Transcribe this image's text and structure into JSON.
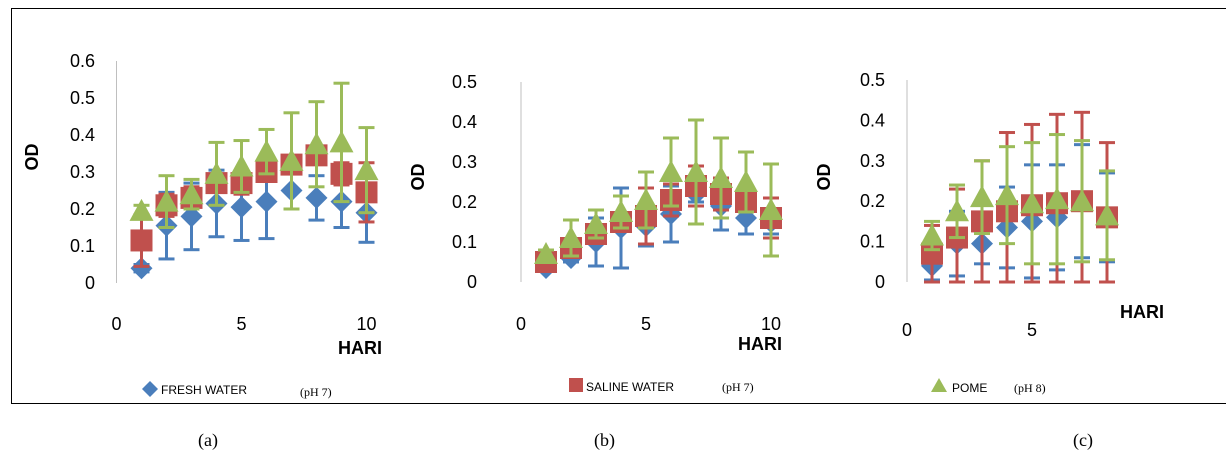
{
  "chart_data": [
    {
      "type": "scatter",
      "panel": "(a)",
      "xlabel": "HARI",
      "ylabel": "OD",
      "xlim": [
        0,
        10
      ],
      "ylim": [
        0,
        0.6
      ],
      "xticks": [
        "0",
        "5",
        "10"
      ],
      "yticks": [
        "0",
        "0.1",
        "0.2",
        "0.3",
        "0.4",
        "0.5",
        "0.6"
      ],
      "x": [
        1,
        2,
        3,
        4,
        5,
        6,
        7,
        8,
        9,
        10
      ],
      "series": [
        {
          "name": "FRESH WATER",
          "marker": "diamond",
          "color": "#4a7ebb",
          "values": [
            0.04,
            0.155,
            0.18,
            0.215,
            0.205,
            0.22,
            0.25,
            0.23,
            0.22,
            0.19
          ],
          "err": [
            0.01,
            0.09,
            0.09,
            0.09,
            0.09,
            0.1,
            0.05,
            0.06,
            0.07,
            0.08
          ]
        },
        {
          "name": "SALINE WATER",
          "marker": "square",
          "color": "#c0504d",
          "values": [
            0.115,
            0.21,
            0.23,
            0.27,
            0.27,
            0.3,
            0.32,
            0.345,
            0.295,
            0.245
          ],
          "err": [
            0.07,
            0.03,
            0.03,
            0.02,
            0.03,
            0.02,
            0.02,
            0.02,
            0.03,
            0.08
          ]
        },
        {
          "name": "POME",
          "marker": "triangle",
          "color": "#9bbb59",
          "values": [
            0.195,
            0.22,
            0.24,
            0.295,
            0.315,
            0.355,
            0.33,
            0.375,
            0.38,
            0.305
          ],
          "err": [
            0.015,
            0.07,
            0.04,
            0.085,
            0.07,
            0.06,
            0.13,
            0.115,
            0.16,
            0.115
          ]
        }
      ]
    },
    {
      "type": "scatter",
      "panel": "(b)",
      "xlabel": "HARI",
      "ylabel": "OD",
      "xlim": [
        0,
        10
      ],
      "ylim": [
        0,
        0.5
      ],
      "xticks": [
        "0",
        "5",
        "10"
      ],
      "yticks": [
        "0",
        "0.1",
        "0.2",
        "0.3",
        "0.4",
        "0.5"
      ],
      "x": [
        1,
        2,
        3,
        4,
        5,
        6,
        7,
        8,
        9,
        10
      ],
      "series": [
        {
          "name": "FRESH WATER",
          "marker": "diamond",
          "color": "#4a7ebb",
          "values": [
            0.035,
            0.06,
            0.1,
            0.135,
            0.14,
            0.17,
            0.22,
            0.19,
            0.16,
            0.15
          ],
          "err": [
            0.005,
            0.01,
            0.06,
            0.1,
            0.05,
            0.07,
            0.02,
            0.06,
            0.04,
            0.03
          ]
        },
        {
          "name": "SALINE WATER",
          "marker": "square",
          "color": "#c0504d",
          "values": [
            0.05,
            0.085,
            0.12,
            0.15,
            0.165,
            0.205,
            0.24,
            0.22,
            0.2,
            0.16
          ],
          "err": [
            0.01,
            0.02,
            0.02,
            0.02,
            0.07,
            0.04,
            0.05,
            0.04,
            0.02,
            0.05
          ]
        },
        {
          "name": "POME",
          "marker": "triangle",
          "color": "#9bbb59",
          "values": [
            0.07,
            0.11,
            0.145,
            0.175,
            0.205,
            0.275,
            0.275,
            0.26,
            0.25,
            0.18
          ],
          "err": [
            0.01,
            0.045,
            0.035,
            0.04,
            0.07,
            0.085,
            0.13,
            0.1,
            0.075,
            0.115
          ]
        }
      ]
    },
    {
      "type": "scatter",
      "panel": "(c)",
      "xlabel": "HARI",
      "ylabel": "OD",
      "xlim": [
        0,
        10
      ],
      "ylim": [
        0,
        0.5
      ],
      "xticks": [
        "0",
        "5"
      ],
      "yticks": [
        "0",
        "0.1",
        "0.2",
        "0.3",
        "0.4",
        "0.5"
      ],
      "x": [
        1,
        2,
        3,
        4,
        5,
        6,
        7,
        8
      ],
      "series": [
        {
          "name": "FRESH WATER",
          "marker": "diamond",
          "color": "#4a7ebb",
          "values": [
            0.04,
            0.095,
            0.095,
            0.135,
            0.15,
            0.16,
            0.2,
            0.16
          ],
          "err": [
            0.035,
            0.08,
            0.05,
            0.1,
            0.14,
            0.13,
            0.14,
            0.11
          ]
        },
        {
          "name": "SALINE WATER",
          "marker": "square",
          "color": "#c0504d",
          "values": [
            0.07,
            0.11,
            0.15,
            0.175,
            0.19,
            0.195,
            0.2,
            0.16
          ],
          "err": [
            0.07,
            0.12,
            0.15,
            0.195,
            0.2,
            0.22,
            0.22,
            0.185
          ]
        },
        {
          "name": "POME",
          "marker": "triangle",
          "color": "#9bbb59",
          "values": [
            0.115,
            0.175,
            0.21,
            0.215,
            0.195,
            0.205,
            0.2,
            0.165
          ],
          "err": [
            0.035,
            0.065,
            0.09,
            0.12,
            0.15,
            0.16,
            0.15,
            0.11
          ]
        }
      ]
    }
  ],
  "legend": [
    {
      "label": "FRESH WATER",
      "note": "(pH 7)"
    },
    {
      "label": "SALINE WATER",
      "note": "(pH 7)"
    },
    {
      "label": "POME",
      "note": "(pH 8)"
    }
  ],
  "panel_labels": [
    "(a)",
    "(b)",
    "(c)"
  ]
}
